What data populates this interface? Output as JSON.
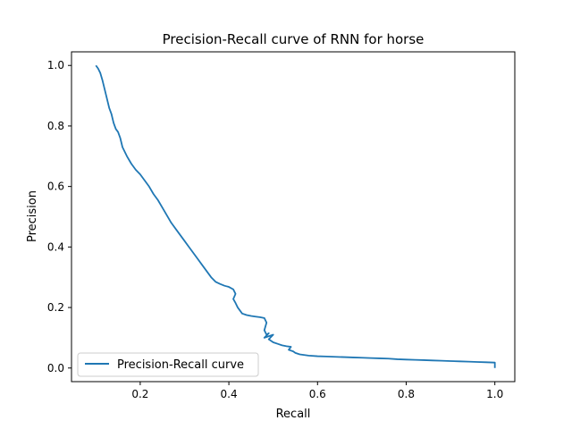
{
  "chart_data": {
    "type": "line",
    "title": "Precision-Recall curve of RNN for horse",
    "xlabel": "Recall",
    "ylabel": "Precision",
    "xlim": [
      0.045,
      1.045
    ],
    "ylim": [
      -0.045,
      1.045
    ],
    "xticks": [
      0.2,
      0.4,
      0.6,
      0.8,
      1.0
    ],
    "xtick_labels": [
      "0.2",
      "0.4",
      "0.6",
      "0.8",
      "1.0"
    ],
    "yticks": [
      0.0,
      0.2,
      0.4,
      0.6,
      0.8,
      1.0
    ],
    "ytick_labels": [
      "0.0",
      "0.2",
      "0.4",
      "0.6",
      "0.8",
      "1.0"
    ],
    "grid": false,
    "legend": {
      "position": "lower-left"
    },
    "series": [
      {
        "name": "Precision-Recall curve",
        "color": "#1f77b4",
        "x": [
          0.1,
          0.105,
          0.11,
          0.115,
          0.12,
          0.125,
          0.13,
          0.135,
          0.14,
          0.145,
          0.15,
          0.155,
          0.16,
          0.17,
          0.18,
          0.19,
          0.2,
          0.21,
          0.22,
          0.23,
          0.24,
          0.25,
          0.26,
          0.27,
          0.28,
          0.29,
          0.3,
          0.31,
          0.32,
          0.33,
          0.34,
          0.35,
          0.36,
          0.37,
          0.38,
          0.39,
          0.4,
          0.41,
          0.415,
          0.41,
          0.415,
          0.42,
          0.425,
          0.43,
          0.44,
          0.45,
          0.46,
          0.47,
          0.48,
          0.485,
          0.48,
          0.485,
          0.49,
          0.48,
          0.5,
          0.49,
          0.5,
          0.51,
          0.52,
          0.53,
          0.54,
          0.535,
          0.545,
          0.55,
          0.56,
          0.58,
          0.6,
          0.62,
          0.64,
          0.66,
          0.68,
          0.7,
          0.72,
          0.74,
          0.76,
          0.78,
          0.8,
          0.82,
          0.84,
          0.86,
          0.88,
          0.9,
          0.92,
          0.94,
          0.96,
          0.98,
          1.0,
          1.0
        ],
        "y": [
          1.0,
          0.99,
          0.975,
          0.95,
          0.92,
          0.89,
          0.86,
          0.84,
          0.81,
          0.79,
          0.78,
          0.76,
          0.73,
          0.7,
          0.675,
          0.655,
          0.64,
          0.62,
          0.6,
          0.575,
          0.555,
          0.53,
          0.505,
          0.48,
          0.46,
          0.44,
          0.42,
          0.4,
          0.38,
          0.36,
          0.34,
          0.32,
          0.3,
          0.285,
          0.278,
          0.272,
          0.268,
          0.26,
          0.245,
          0.228,
          0.215,
          0.2,
          0.19,
          0.18,
          0.175,
          0.172,
          0.17,
          0.168,
          0.165,
          0.15,
          0.125,
          0.11,
          0.115,
          0.1,
          0.11,
          0.095,
          0.085,
          0.08,
          0.075,
          0.072,
          0.07,
          0.06,
          0.055,
          0.05,
          0.045,
          0.041,
          0.039,
          0.038,
          0.037,
          0.036,
          0.035,
          0.034,
          0.033,
          0.032,
          0.031,
          0.029,
          0.028,
          0.027,
          0.026,
          0.025,
          0.024,
          0.023,
          0.022,
          0.021,
          0.02,
          0.019,
          0.018,
          0.0
        ]
      }
    ]
  }
}
